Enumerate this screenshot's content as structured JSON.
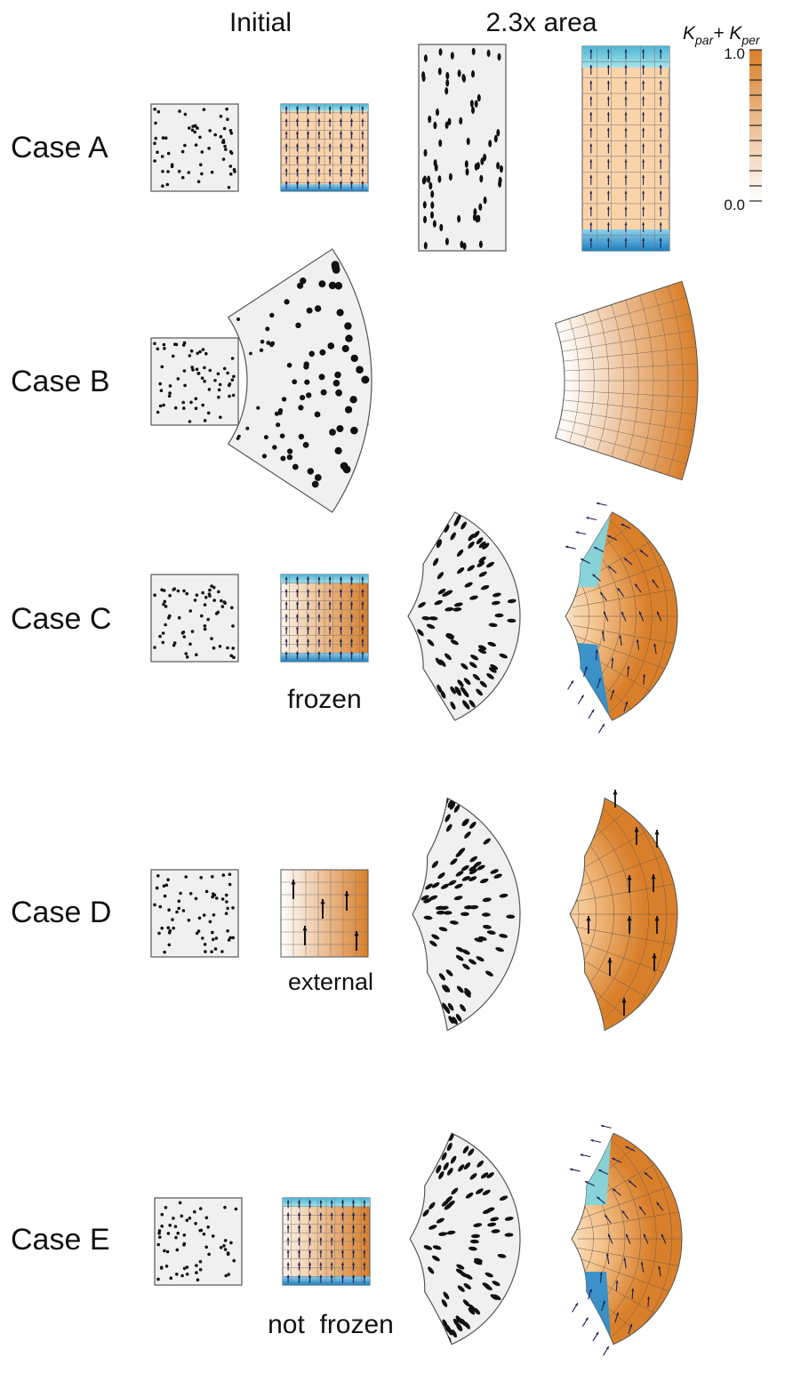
{
  "headers": {
    "initial": "Initial",
    "final": "2.3x area"
  },
  "colorbar": {
    "label": "K",
    "sub1": "par",
    "plus": "+ K",
    "sub2": "per",
    "max": "1.0",
    "min": "0.0"
  },
  "cases": [
    {
      "id": "A",
      "label": "Case A",
      "note": ""
    },
    {
      "id": "B",
      "label": "Case B",
      "note": ""
    },
    {
      "id": "C",
      "label": "Case C",
      "note": "frozen"
    },
    {
      "id": "D",
      "label": "Case D",
      "note": "external"
    },
    {
      "id": "E",
      "label": "Case E",
      "note": "not  frozen"
    }
  ],
  "colors": {
    "orange_dark": "#d97f2a",
    "orange_light": "#fdf4e8",
    "blue": "#2d8fcf",
    "cyan": "#7fd6df",
    "panel_gray": "#f0f0f0",
    "arrow": "#1f1f55"
  }
}
